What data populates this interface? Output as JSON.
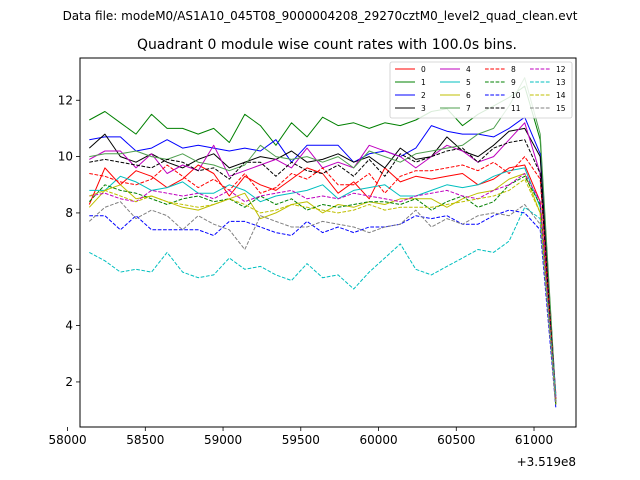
{
  "suptitle": "Data file: modeM0/AS1A10_045T08_9000004208_29270cztM0_level2_quad_clean.evt",
  "chart_data": {
    "type": "line",
    "title": "Quadrant 0 module wise count rates with 100.0s bins.",
    "xlabel": "",
    "ylabel": "",
    "x_offset_label": "+3.519e8",
    "xlim": [
      58080,
      61270
    ],
    "ylim": [
      0.4,
      13.5
    ],
    "xticks": [
      58000,
      58500,
      59000,
      59500,
      60000,
      60500,
      61000
    ],
    "xtick_labels": [
      "58000",
      "58500",
      "59000",
      "59500",
      "60000",
      "60500",
      "61000"
    ],
    "yticks": [
      2,
      4,
      6,
      8,
      10,
      12
    ],
    "ytick_labels": [
      "2",
      "4",
      "6",
      "8",
      "10",
      "12"
    ],
    "grid": false,
    "legend_position": "top-right",
    "legend_columns": 4,
    "x": [
      58140,
      58240,
      58340,
      58440,
      58540,
      58640,
      58740,
      58840,
      58940,
      59040,
      59140,
      59240,
      59340,
      59440,
      59540,
      59640,
      59740,
      59840,
      59940,
      60040,
      60140,
      60240,
      60340,
      60440,
      60540,
      60640,
      60740,
      60840,
      60940,
      61040,
      61140
    ],
    "series": [
      {
        "name": "0",
        "color": "#ff0000",
        "dash": "solid",
        "values": [
          8.3,
          9.6,
          9.0,
          9.5,
          9.3,
          8.9,
          9.2,
          9.7,
          9.4,
          8.6,
          9.3,
          9.0,
          8.8,
          9.2,
          9.6,
          9.4,
          8.7,
          9.1,
          8.5,
          9.6,
          9.1,
          9.3,
          9.2,
          9.3,
          9.4,
          9.0,
          9.2,
          9.6,
          9.7,
          8.4,
          1.6
        ]
      },
      {
        "name": "1",
        "color": "#008000",
        "dash": "solid",
        "values": [
          11.3,
          11.6,
          11.2,
          10.8,
          11.5,
          11.0,
          11.0,
          10.8,
          11.0,
          10.5,
          11.5,
          11.1,
          10.4,
          11.2,
          10.7,
          11.4,
          11.1,
          11.2,
          11.0,
          11.2,
          11.1,
          11.3,
          11.6,
          11.7,
          11.1,
          11.5,
          11.8,
          12.1,
          12.5,
          10.6,
          1.3
        ]
      },
      {
        "name": "2",
        "color": "#0000ff",
        "dash": "solid",
        "values": [
          10.6,
          10.7,
          10.7,
          10.2,
          10.3,
          10.6,
          10.3,
          10.4,
          10.3,
          10.2,
          10.3,
          10.2,
          10.6,
          9.8,
          10.4,
          10.4,
          10.4,
          9.8,
          10.1,
          10.2,
          10.0,
          10.3,
          11.1,
          10.9,
          10.8,
          10.8,
          10.7,
          11.0,
          11.4,
          10.1,
          1.5
        ]
      },
      {
        "name": "3",
        "color": "#000000",
        "dash": "solid",
        "values": [
          10.3,
          10.8,
          10.0,
          9.8,
          10.1,
          9.8,
          9.6,
          9.9,
          10.1,
          9.6,
          9.8,
          10.0,
          9.9,
          10.2,
          9.8,
          9.9,
          10.1,
          9.8,
          10.0,
          9.6,
          10.3,
          9.9,
          10.0,
          10.7,
          10.2,
          10.0,
          10.4,
          10.9,
          11.0,
          10.0,
          1.2
        ]
      },
      {
        "name": "4",
        "color": "#bf00bf",
        "dash": "solid",
        "values": [
          9.9,
          10.2,
          10.2,
          9.6,
          10.1,
          9.4,
          9.7,
          9.5,
          10.4,
          9.3,
          9.5,
          9.7,
          9.9,
          9.6,
          10.3,
          9.6,
          9.8,
          9.6,
          10.4,
          10.2,
          10.0,
          9.6,
          10.0,
          10.4,
          10.2,
          9.8,
          10.0,
          10.6,
          11.2,
          9.4,
          1.4
        ]
      },
      {
        "name": "5",
        "color": "#00bfbf",
        "dash": "solid",
        "values": [
          8.8,
          8.8,
          9.3,
          9.1,
          8.8,
          8.9,
          9.1,
          8.7,
          8.7,
          9.0,
          8.8,
          8.4,
          8.6,
          8.7,
          8.8,
          9.0,
          8.5,
          8.8,
          8.9,
          9.0,
          8.6,
          8.6,
          8.8,
          9.0,
          8.9,
          9.0,
          9.3,
          9.5,
          9.6,
          8.2,
          1.3
        ]
      },
      {
        "name": "6",
        "color": "#bfbf00",
        "dash": "solid",
        "values": [
          8.2,
          8.8,
          9.0,
          8.5,
          8.6,
          8.4,
          8.2,
          8.1,
          8.3,
          8.5,
          8.7,
          7.8,
          8.0,
          8.3,
          8.4,
          8.0,
          8.3,
          8.2,
          8.4,
          8.3,
          8.5,
          8.5,
          8.5,
          8.2,
          8.5,
          8.7,
          8.8,
          9.2,
          9.4,
          8.0,
          1.2
        ]
      },
      {
        "name": "7",
        "color": "#4f9f4f",
        "dash": "solid",
        "values": [
          10.0,
          10.1,
          10.1,
          10.2,
          10.0,
          9.9,
          10.1,
          9.8,
          9.7,
          9.5,
          9.7,
          10.4,
          10.0,
          9.9,
          10.0,
          9.8,
          10.0,
          9.6,
          10.2,
          10.0,
          9.8,
          10.1,
          10.2,
          10.3,
          10.4,
          10.8,
          11.0,
          11.8,
          12.8,
          10.8,
          1.4
        ]
      },
      {
        "name": "8",
        "color": "#ff0000",
        "dash": "dashed",
        "values": [
          9.4,
          9.3,
          9.1,
          9.0,
          9.2,
          9.7,
          9.3,
          8.9,
          9.2,
          8.8,
          9.4,
          8.7,
          8.9,
          9.4,
          9.2,
          9.6,
          9.0,
          9.0,
          9.4,
          8.7,
          9.3,
          9.5,
          9.5,
          9.6,
          9.7,
          9.5,
          9.8,
          9.4,
          10.0,
          9.2,
          1.4
        ]
      },
      {
        "name": "9",
        "color": "#008000",
        "dash": "dashed",
        "values": [
          8.4,
          9.0,
          8.8,
          8.7,
          8.5,
          8.3,
          8.5,
          8.6,
          8.4,
          8.5,
          8.2,
          8.6,
          8.3,
          8.5,
          8.1,
          8.3,
          8.2,
          8.3,
          8.4,
          8.4,
          8.3,
          8.5,
          8.1,
          8.4,
          8.6,
          8.2,
          8.4,
          9.0,
          9.3,
          8.3,
          1.2
        ]
      },
      {
        "name": "10",
        "color": "#0000ff",
        "dash": "dashed",
        "values": [
          7.9,
          7.9,
          7.4,
          7.9,
          7.4,
          7.4,
          7.4,
          7.4,
          7.2,
          7.7,
          7.7,
          7.5,
          7.3,
          7.2,
          7.7,
          7.3,
          7.5,
          7.3,
          7.5,
          7.5,
          7.6,
          7.9,
          7.8,
          7.9,
          7.6,
          7.6,
          7.9,
          8.1,
          8.0,
          7.4,
          1.1
        ]
      },
      {
        "name": "11",
        "color": "#000000",
        "dash": "dashed",
        "values": [
          9.8,
          9.9,
          9.8,
          9.7,
          9.6,
          9.9,
          9.8,
          9.5,
          9.6,
          9.2,
          9.8,
          9.8,
          9.3,
          9.8,
          9.5,
          9.4,
          9.7,
          9.3,
          9.9,
          9.3,
          10.1,
          9.8,
          10.0,
          10.2,
          10.3,
          9.8,
          10.3,
          10.5,
          10.6,
          9.4,
          1.3
        ]
      },
      {
        "name": "12",
        "color": "#bf00bf",
        "dash": "dashed",
        "values": [
          8.6,
          8.7,
          8.5,
          8.4,
          8.8,
          8.7,
          8.6,
          8.7,
          8.5,
          8.8,
          8.4,
          8.6,
          8.7,
          8.8,
          8.5,
          8.6,
          8.5,
          8.7,
          8.6,
          8.5,
          8.4,
          8.6,
          8.7,
          8.8,
          8.6,
          8.5,
          8.8,
          9.0,
          9.4,
          8.4,
          1.3
        ]
      },
      {
        "name": "13",
        "color": "#00bfbf",
        "dash": "dashed",
        "values": [
          6.6,
          6.3,
          5.9,
          6.0,
          5.9,
          6.6,
          5.9,
          5.7,
          5.8,
          6.4,
          6.0,
          6.1,
          5.8,
          5.6,
          6.2,
          5.7,
          5.8,
          5.3,
          5.9,
          6.4,
          6.9,
          6.0,
          5.8,
          6.1,
          6.4,
          6.7,
          6.6,
          7.0,
          8.2,
          7.8,
          1.5
        ]
      },
      {
        "name": "14",
        "color": "#bfbf00",
        "dash": "dashed",
        "values": [
          8.6,
          8.8,
          8.6,
          8.4,
          8.6,
          8.4,
          8.3,
          8.2,
          8.3,
          8.5,
          8.3,
          8.0,
          8.1,
          8.3,
          8.2,
          8.1,
          8.0,
          8.1,
          8.3,
          8.1,
          8.2,
          8.2,
          8.2,
          8.3,
          8.4,
          8.5,
          8.6,
          8.8,
          9.2,
          8.0,
          1.2
        ]
      },
      {
        "name": "15",
        "color": "#808080",
        "dash": "dashed",
        "values": [
          7.7,
          8.2,
          8.4,
          7.8,
          8.1,
          7.9,
          7.4,
          7.9,
          7.6,
          7.4,
          6.7,
          7.9,
          7.7,
          7.5,
          7.5,
          7.7,
          7.6,
          7.5,
          7.3,
          7.5,
          7.6,
          8.1,
          7.5,
          7.8,
          7.6,
          7.9,
          8.0,
          7.9,
          8.3,
          7.6,
          1.3
        ]
      }
    ]
  }
}
